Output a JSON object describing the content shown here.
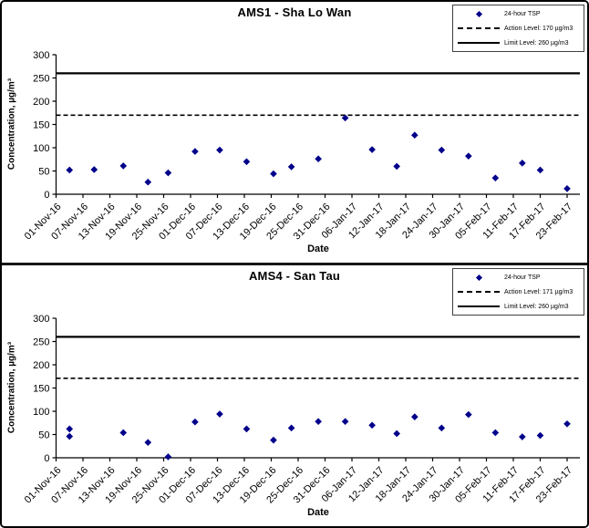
{
  "page": {
    "background": "#ffffff",
    "border_color": "#000000",
    "marker_color": "#00008B"
  },
  "chart_data": [
    {
      "type": "scatter",
      "title": "AMS1 - Sha Lo Wan",
      "xlabel": "Date",
      "ylabel": "Concentration, µg/m³",
      "ylim": [
        0,
        300
      ],
      "yticks": [
        0,
        50,
        100,
        150,
        200,
        250,
        300
      ],
      "x_tick_labels": [
        "01-Nov-16",
        "07-Nov-16",
        "13-Nov-16",
        "19-Nov-16",
        "25-Nov-16",
        "01-Dec-16",
        "07-Dec-16",
        "13-Dec-16",
        "19-Dec-16",
        "25-Dec-16",
        "31-Dec-16",
        "06-Jan-17",
        "12-Jan-17",
        "18-Jan-17",
        "24-Jan-17",
        "30-Jan-17",
        "05-Feb-17",
        "11-Feb-17",
        "17-Feb-17",
        "23-Feb-17"
      ],
      "tick_interval_days": 6,
      "action_level": 170,
      "limit_level": 260,
      "grid": false,
      "legend_position": "top-right",
      "legend": [
        {
          "label": "24-hour TSP",
          "marker": "diamond"
        },
        {
          "label": "Action Level: 170 µg/m3",
          "marker": "dashed-line"
        },
        {
          "label": "Limit Level: 260 µg/m3",
          "marker": "solid-line"
        }
      ],
      "series": [
        {
          "name": "24-hour TSP",
          "color": "#00008B",
          "points": [
            {
              "day": 3,
              "value": 52
            },
            {
              "day": 8.5,
              "value": 53
            },
            {
              "day": 15,
              "value": 61
            },
            {
              "day": 20.5,
              "value": 26
            },
            {
              "day": 25,
              "value": 46
            },
            {
              "day": 31,
              "value": 92
            },
            {
              "day": 36.5,
              "value": 95
            },
            {
              "day": 42.5,
              "value": 70
            },
            {
              "day": 48.5,
              "value": 44
            },
            {
              "day": 52.5,
              "value": 59
            },
            {
              "day": 58.5,
              "value": 76
            },
            {
              "day": 64.5,
              "value": 164
            },
            {
              "day": 70.5,
              "value": 96
            },
            {
              "day": 76,
              "value": 60
            },
            {
              "day": 80,
              "value": 127
            },
            {
              "day": 86,
              "value": 95
            },
            {
              "day": 92,
              "value": 82
            },
            {
              "day": 98,
              "value": 35
            },
            {
              "day": 104,
              "value": 67
            },
            {
              "day": 108,
              "value": 52
            },
            {
              "day": 114,
              "value": 12
            }
          ]
        }
      ]
    },
    {
      "type": "scatter",
      "title": "AMS4 - San Tau",
      "xlabel": "Date",
      "ylabel": "Concentration, µg/m³",
      "ylim": [
        0,
        300
      ],
      "yticks": [
        0,
        50,
        100,
        150,
        200,
        250,
        300
      ],
      "x_tick_labels": [
        "01-Nov-16",
        "07-Nov-16",
        "13-Nov-16",
        "19-Nov-16",
        "25-Nov-16",
        "01-Dec-16",
        "07-Dec-16",
        "13-Dec-16",
        "19-Dec-16",
        "25-Dec-16",
        "31-Dec-16",
        "06-Jan-17",
        "12-Jan-17",
        "18-Jan-17",
        "24-Jan-17",
        "30-Jan-17",
        "05-Feb-17",
        "11-Feb-17",
        "17-Feb-17",
        "23-Feb-17"
      ],
      "tick_interval_days": 6,
      "action_level": 171,
      "limit_level": 260,
      "grid": false,
      "legend_position": "top-right",
      "legend": [
        {
          "label": "24-hour TSP",
          "marker": "diamond"
        },
        {
          "label": "Action Level: 171 µg/m3",
          "marker": "dashed-line"
        },
        {
          "label": "Limit Level: 260 µg/m3",
          "marker": "solid-line"
        }
      ],
      "series": [
        {
          "name": "24-hour TSP",
          "color": "#00008B",
          "points": [
            {
              "day": 3,
              "value": 62
            },
            {
              "day": 3,
              "value": 46
            },
            {
              "day": 15,
              "value": 54
            },
            {
              "day": 20.5,
              "value": 33
            },
            {
              "day": 25,
              "value": 2
            },
            {
              "day": 31,
              "value": 77
            },
            {
              "day": 36.5,
              "value": 94
            },
            {
              "day": 42.5,
              "value": 62
            },
            {
              "day": 48.5,
              "value": 38
            },
            {
              "day": 52.5,
              "value": 64
            },
            {
              "day": 58.5,
              "value": 78
            },
            {
              "day": 64.5,
              "value": 78
            },
            {
              "day": 70.5,
              "value": 70
            },
            {
              "day": 76,
              "value": 52
            },
            {
              "day": 80,
              "value": 88
            },
            {
              "day": 86,
              "value": 64
            },
            {
              "day": 92,
              "value": 93
            },
            {
              "day": 98,
              "value": 54
            },
            {
              "day": 104,
              "value": 45
            },
            {
              "day": 108,
              "value": 48
            },
            {
              "day": 114,
              "value": 73
            }
          ]
        }
      ]
    }
  ]
}
